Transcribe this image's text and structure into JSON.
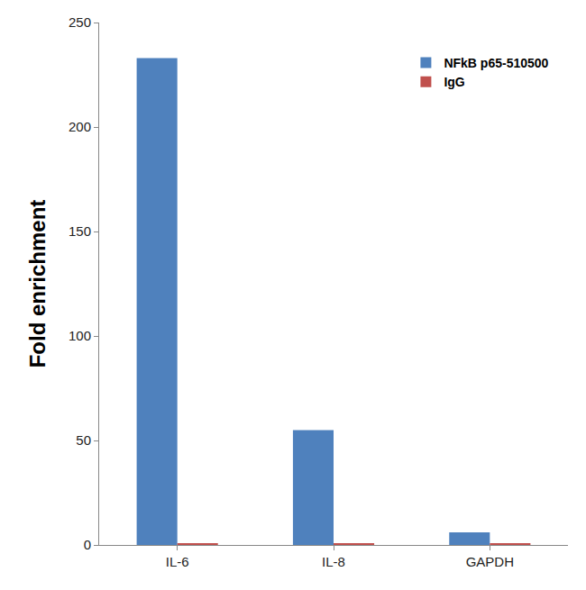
{
  "chart_data": {
    "type": "bar",
    "y_label": "Fold enrichment",
    "categories": [
      "IL-6",
      "IL-8",
      "GAPDH"
    ],
    "series": [
      {
        "name": "NFkB p65-510500",
        "color": "#4f81bd",
        "values": [
          233,
          55,
          6
        ]
      },
      {
        "name": "IgG",
        "color": "#c0504d",
        "values": [
          0.5,
          0.5,
          0.5
        ]
      }
    ],
    "ylim": [
      0,
      250
    ],
    "yticks": [
      0,
      50,
      100,
      150,
      200,
      250
    ],
    "grid": false,
    "legend": "top right"
  }
}
